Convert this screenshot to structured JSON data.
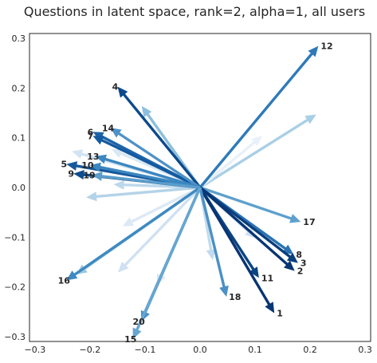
{
  "chart_data": {
    "type": "quiver",
    "title": "Questions in latent space, rank=2, alpha=1, all users",
    "xlabel": "",
    "ylabel": "",
    "xlim": [
      -0.31,
      0.31
    ],
    "ylim": [
      -0.31,
      0.31
    ],
    "x_ticks": [
      "−0.3",
      "−0.2",
      "−0.1",
      "0.0",
      "0.1",
      "0.2",
      "0.3"
    ],
    "y_ticks": [
      "0.3",
      "0.2",
      "0.1",
      "0.0",
      "−0.1",
      "−0.2",
      "−0.3"
    ],
    "x_tick_values": [
      -0.3,
      -0.2,
      -0.1,
      0.0,
      0.1,
      0.2,
      0.3
    ],
    "y_tick_values": [
      0.3,
      0.2,
      0.1,
      0.0,
      -0.1,
      -0.2,
      -0.3
    ],
    "grid": false,
    "origin": [
      0.0,
      0.0
    ],
    "vectors": [
      {
        "label": "12",
        "x": 0.215,
        "y": 0.285,
        "color": "#2e7ab9"
      },
      {
        "label": "4",
        "x": -0.15,
        "y": 0.203,
        "color": "#0c4a8b"
      },
      {
        "label": "6",
        "x": -0.195,
        "y": 0.112,
        "color": "#1e63a7"
      },
      {
        "label": "7",
        "x": -0.195,
        "y": 0.104,
        "color": "#135aa0"
      },
      {
        "label": "14",
        "x": -0.163,
        "y": 0.12,
        "color": "#4e92c7"
      },
      {
        "label": "13",
        "x": -0.19,
        "y": 0.063,
        "color": "#3c87c1"
      },
      {
        "label": "5",
        "x": -0.243,
        "y": 0.047,
        "color": "#17589b"
      },
      {
        "label": "10",
        "x": -0.2,
        "y": 0.045,
        "color": "#3a86c0"
      },
      {
        "label": "9",
        "x": -0.23,
        "y": 0.028,
        "color": "#0d4c8d"
      },
      {
        "label": "19",
        "x": -0.197,
        "y": 0.025,
        "color": "#5b9dcb"
      },
      {
        "label": "17",
        "x": 0.183,
        "y": -0.069,
        "color": "#5ea0cc"
      },
      {
        "label": "8",
        "x": 0.17,
        "y": -0.135,
        "color": "#2b73b3"
      },
      {
        "label": "3",
        "x": 0.178,
        "y": -0.152,
        "color": "#0a3e7c"
      },
      {
        "label": "2",
        "x": 0.172,
        "y": -0.168,
        "color": "#083573"
      },
      {
        "label": "11",
        "x": 0.107,
        "y": -0.182,
        "color": "#0b4483"
      },
      {
        "label": "1",
        "x": 0.135,
        "y": -0.253,
        "color": "#083573"
      },
      {
        "label": "18",
        "x": 0.048,
        "y": -0.22,
        "color": "#4b90c6"
      },
      {
        "label": "16",
        "x": -0.243,
        "y": -0.187,
        "color": "#3e89c1"
      },
      {
        "label": "20",
        "x": -0.107,
        "y": -0.27,
        "color": "#4a90c5"
      },
      {
        "label": "15",
        "x": -0.122,
        "y": -0.305,
        "color": "#66a6d1"
      },
      {
        "label": "",
        "x": 0.211,
        "y": 0.147,
        "color": "#a9cfe5"
      },
      {
        "label": "",
        "x": 0.113,
        "y": 0.104,
        "color": "#e8f1f9"
      },
      {
        "label": "",
        "x": -0.106,
        "y": 0.164,
        "color": "#8dbfdd"
      },
      {
        "label": "",
        "x": -0.161,
        "y": 0.077,
        "color": "#d8e8f4"
      },
      {
        "label": "",
        "x": -0.233,
        "y": 0.073,
        "color": "#d2e4f2"
      },
      {
        "label": "",
        "x": -0.157,
        "y": 0.006,
        "color": "#bcd8ec"
      },
      {
        "label": "",
        "x": -0.207,
        "y": -0.02,
        "color": "#b4d3e8"
      },
      {
        "label": "",
        "x": -0.141,
        "y": -0.078,
        "color": "#dce9f5"
      },
      {
        "label": "",
        "x": -0.225,
        "y": -0.175,
        "color": "#9cc7e1"
      },
      {
        "label": "",
        "x": -0.149,
        "y": -0.171,
        "color": "#cfe1f2"
      },
      {
        "label": "",
        "x": -0.078,
        "y": -0.196,
        "color": "#dbe9f6"
      },
      {
        "label": "",
        "x": 0.023,
        "y": -0.146,
        "color": "#c2dbee"
      },
      {
        "label": "",
        "x": 0.101,
        "y": -0.102,
        "color": "#cde0f1"
      }
    ]
  }
}
